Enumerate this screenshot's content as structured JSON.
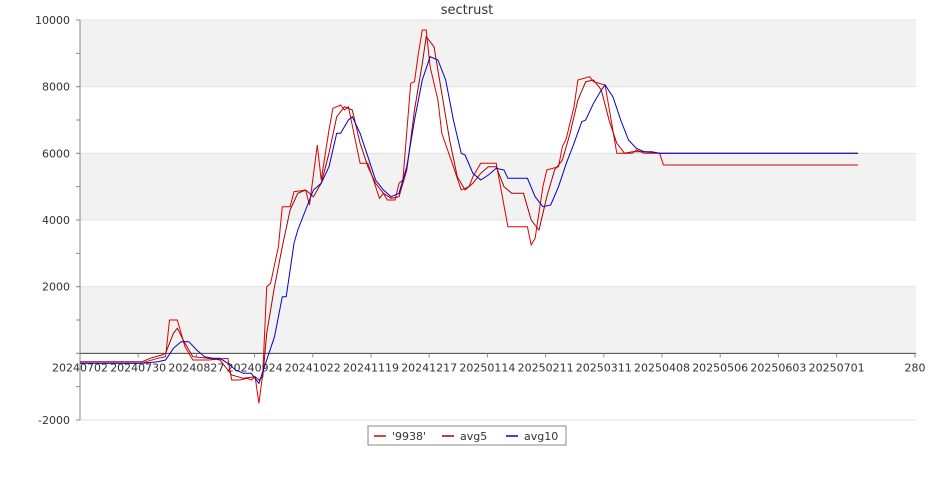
{
  "chart_data": {
    "type": "line",
    "title": "sectrust",
    "xlabel": "",
    "ylabel": "",
    "ylim": [
      -2000,
      10000
    ],
    "y_ticks": [
      -2000,
      2000,
      4000,
      6000,
      8000,
      10000
    ],
    "y_tick_labels": [
      "-2000",
      "2000",
      "4000",
      "6000",
      "8000",
      "10000"
    ],
    "x_tick_labels": [
      "20240702",
      "20240730",
      "20240827",
      "20240924",
      "20241022",
      "20241119",
      "20241217",
      "20250114",
      "20250211",
      "20250311",
      "20250408",
      "20250506",
      "20250603",
      "20250701",
      "280"
    ],
    "grid": true,
    "banded_background": true,
    "legend_position": "bottom-center",
    "series": [
      {
        "name": "'9938'",
        "color": "#dd0000",
        "points": [
          [
            0,
            -300
          ],
          [
            16,
            -300
          ],
          [
            17,
            -250
          ],
          [
            20,
            -150
          ],
          [
            22,
            -100
          ],
          [
            23,
            1000
          ],
          [
            25,
            1000
          ],
          [
            27,
            200
          ],
          [
            29,
            -200
          ],
          [
            33,
            -200
          ],
          [
            38,
            -150
          ],
          [
            39,
            -800
          ],
          [
            41,
            -800
          ],
          [
            43,
            -750
          ],
          [
            44,
            -800
          ],
          [
            45,
            -700
          ],
          [
            46,
            -1500
          ],
          [
            47,
            -600
          ],
          [
            48,
            2000
          ],
          [
            49,
            2100
          ],
          [
            51,
            3200
          ],
          [
            52,
            4400
          ],
          [
            54,
            4400
          ],
          [
            55,
            4850
          ],
          [
            58,
            4900
          ],
          [
            59,
            4450
          ],
          [
            61,
            6250
          ],
          [
            62,
            5200
          ],
          [
            64,
            6700
          ],
          [
            65,
            7350
          ],
          [
            67,
            7450
          ],
          [
            68,
            7300
          ],
          [
            69,
            7400
          ],
          [
            72,
            5700
          ],
          [
            74,
            5700
          ],
          [
            77,
            4650
          ],
          [
            78,
            4800
          ],
          [
            79,
            4600
          ],
          [
            81,
            4600
          ],
          [
            82,
            5100
          ],
          [
            83,
            5200
          ],
          [
            85,
            8100
          ],
          [
            86,
            8150
          ],
          [
            87,
            9000
          ],
          [
            88,
            9700
          ],
          [
            89,
            9700
          ],
          [
            90,
            8600
          ],
          [
            92,
            7600
          ],
          [
            93,
            6600
          ],
          [
            96,
            5600
          ],
          [
            98,
            4900
          ],
          [
            99,
            4950
          ],
          [
            100,
            5000
          ],
          [
            101,
            5300
          ],
          [
            103,
            5700
          ],
          [
            107,
            5700
          ],
          [
            110,
            3800
          ],
          [
            115,
            3800
          ],
          [
            116,
            3250
          ],
          [
            117,
            3450
          ],
          [
            119,
            5000
          ],
          [
            120,
            5500
          ],
          [
            123,
            5600
          ],
          [
            124,
            6200
          ],
          [
            125,
            6450
          ],
          [
            127,
            7400
          ],
          [
            128,
            8200
          ],
          [
            131,
            8300
          ],
          [
            132,
            8150
          ],
          [
            135,
            8050
          ],
          [
            138,
            6000
          ],
          [
            142,
            6000
          ],
          [
            143,
            6100
          ],
          [
            145,
            6000
          ],
          [
            149,
            6000
          ],
          [
            150,
            5650
          ],
          [
            160,
            5650
          ],
          [
            180,
            5650
          ],
          [
            200,
            5650
          ]
        ]
      },
      {
        "name": "avg5",
        "color": "#aa0000",
        "points": [
          [
            0,
            -250
          ],
          [
            16,
            -250
          ],
          [
            18,
            -150
          ],
          [
            21,
            -50
          ],
          [
            22,
            0
          ],
          [
            24,
            600
          ],
          [
            25,
            750
          ],
          [
            27,
            300
          ],
          [
            29,
            -100
          ],
          [
            33,
            -150
          ],
          [
            36,
            -200
          ],
          [
            39,
            -650
          ],
          [
            42,
            -750
          ],
          [
            45,
            -700
          ],
          [
            46,
            -800
          ],
          [
            47,
            -700
          ],
          [
            48,
            600
          ],
          [
            50,
            2000
          ],
          [
            52,
            3200
          ],
          [
            54,
            4300
          ],
          [
            56,
            4800
          ],
          [
            58,
            4900
          ],
          [
            60,
            4700
          ],
          [
            62,
            5100
          ],
          [
            64,
            6000
          ],
          [
            66,
            7100
          ],
          [
            68,
            7400
          ],
          [
            70,
            7300
          ],
          [
            72,
            6300
          ],
          [
            74,
            5600
          ],
          [
            76,
            5100
          ],
          [
            78,
            4800
          ],
          [
            80,
            4650
          ],
          [
            82,
            4700
          ],
          [
            84,
            5500
          ],
          [
            86,
            7300
          ],
          [
            88,
            8700
          ],
          [
            89,
            9500
          ],
          [
            91,
            9200
          ],
          [
            93,
            7800
          ],
          [
            95,
            6400
          ],
          [
            97,
            5300
          ],
          [
            99,
            4900
          ],
          [
            101,
            5100
          ],
          [
            103,
            5400
          ],
          [
            105,
            5600
          ],
          [
            107,
            5600
          ],
          [
            109,
            5000
          ],
          [
            111,
            4800
          ],
          [
            114,
            4800
          ],
          [
            116,
            4000
          ],
          [
            118,
            3700
          ],
          [
            120,
            4700
          ],
          [
            122,
            5500
          ],
          [
            124,
            5800
          ],
          [
            126,
            6600
          ],
          [
            128,
            7600
          ],
          [
            130,
            8150
          ],
          [
            132,
            8200
          ],
          [
            134,
            7900
          ],
          [
            136,
            7000
          ],
          [
            138,
            6300
          ],
          [
            140,
            6000
          ],
          [
            142,
            6050
          ],
          [
            145,
            6050
          ],
          [
            149,
            6000
          ],
          [
            160,
            6000
          ],
          [
            200,
            6000
          ]
        ]
      },
      {
        "name": "avg10",
        "color": "#0000cc",
        "points": [
          [
            0,
            -300
          ],
          [
            16,
            -300
          ],
          [
            20,
            -250
          ],
          [
            22,
            -200
          ],
          [
            24,
            150
          ],
          [
            26,
            350
          ],
          [
            28,
            350
          ],
          [
            30,
            100
          ],
          [
            32,
            -100
          ],
          [
            34,
            -150
          ],
          [
            36,
            -150
          ],
          [
            38,
            -300
          ],
          [
            40,
            -500
          ],
          [
            42,
            -600
          ],
          [
            44,
            -600
          ],
          [
            46,
            -900
          ],
          [
            48,
            -200
          ],
          [
            50,
            500
          ],
          [
            52,
            1700
          ],
          [
            53,
            1700
          ],
          [
            55,
            3300
          ],
          [
            56,
            3700
          ],
          [
            58,
            4300
          ],
          [
            60,
            4900
          ],
          [
            62,
            5100
          ],
          [
            64,
            5600
          ],
          [
            66,
            6600
          ],
          [
            67,
            6600
          ],
          [
            69,
            7000
          ],
          [
            70,
            7100
          ],
          [
            72,
            6600
          ],
          [
            74,
            5900
          ],
          [
            76,
            5200
          ],
          [
            78,
            4900
          ],
          [
            80,
            4700
          ],
          [
            82,
            4800
          ],
          [
            84,
            5600
          ],
          [
            86,
            7000
          ],
          [
            88,
            8200
          ],
          [
            90,
            8900
          ],
          [
            92,
            8800
          ],
          [
            94,
            8200
          ],
          [
            96,
            7000
          ],
          [
            98,
            6000
          ],
          [
            99,
            5950
          ],
          [
            101,
            5400
          ],
          [
            103,
            5200
          ],
          [
            105,
            5350
          ],
          [
            107,
            5550
          ],
          [
            109,
            5500
          ],
          [
            110,
            5250
          ],
          [
            115,
            5250
          ],
          [
            117,
            4700
          ],
          [
            119,
            4400
          ],
          [
            121,
            4450
          ],
          [
            123,
            5000
          ],
          [
            125,
            5700
          ],
          [
            127,
            6300
          ],
          [
            129,
            6950
          ],
          [
            130,
            7000
          ],
          [
            132,
            7500
          ],
          [
            134,
            7900
          ],
          [
            135,
            8050
          ],
          [
            137,
            7700
          ],
          [
            139,
            7000
          ],
          [
            141,
            6400
          ],
          [
            143,
            6150
          ],
          [
            145,
            6050
          ],
          [
            147,
            6050
          ],
          [
            149,
            6000
          ],
          [
            160,
            6000
          ],
          [
            200,
            6000
          ]
        ]
      }
    ]
  }
}
